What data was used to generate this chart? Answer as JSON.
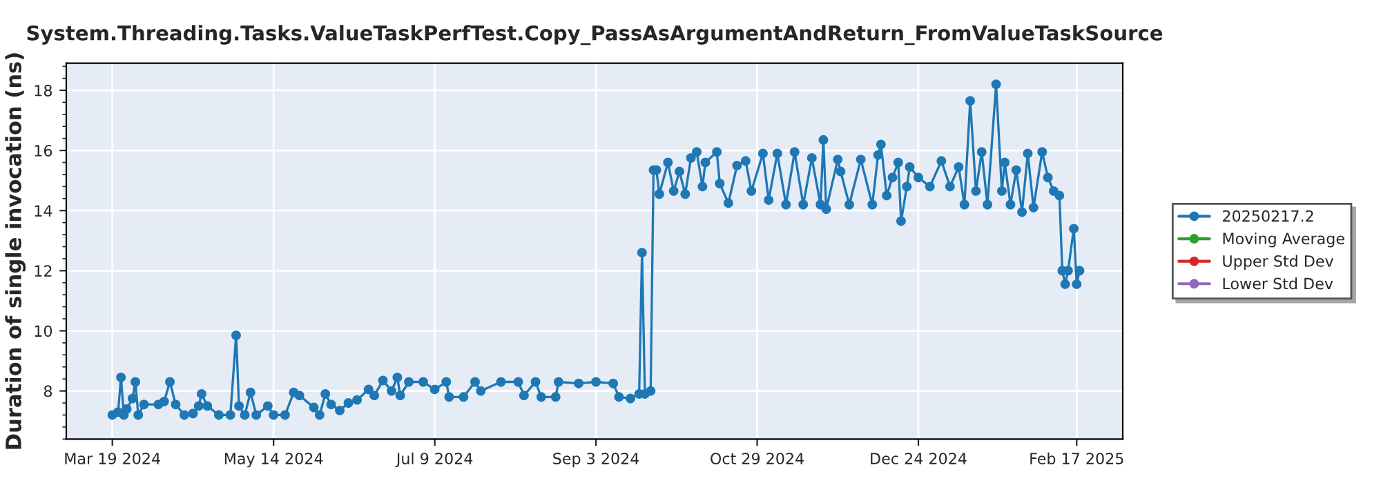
{
  "chart_data": {
    "type": "line",
    "title": "System.Threading.Tasks.ValueTaskPerfTest.Copy_PassAsArgumentAndReturn_FromValueTaskSource",
    "ylabel": "Duration of single invocation (ns)",
    "x": [
      "2024-03-19",
      "2024-03-21",
      "2024-03-22",
      "2024-03-23",
      "2024-03-24",
      "2024-03-26",
      "2024-03-27",
      "2024-03-28",
      "2024-03-30",
      "2024-04-04",
      "2024-04-06",
      "2024-04-08",
      "2024-04-10",
      "2024-04-13",
      "2024-04-16",
      "2024-04-18",
      "2024-04-19",
      "2024-04-21",
      "2024-04-25",
      "2024-04-29",
      "2024-05-01",
      "2024-05-02",
      "2024-05-04",
      "2024-05-06",
      "2024-05-08",
      "2024-05-12",
      "2024-05-14",
      "2024-05-18",
      "2024-05-21",
      "2024-05-23",
      "2024-05-28",
      "2024-05-30",
      "2024-06-01",
      "2024-06-03",
      "2024-06-06",
      "2024-06-09",
      "2024-06-12",
      "2024-06-16",
      "2024-06-18",
      "2024-06-21",
      "2024-06-24",
      "2024-06-26",
      "2024-06-27",
      "2024-06-30",
      "2024-07-05",
      "2024-07-09",
      "2024-07-13",
      "2024-07-14",
      "2024-07-19",
      "2024-07-23",
      "2024-07-25",
      "2024-08-01",
      "2024-08-07",
      "2024-08-09",
      "2024-08-13",
      "2024-08-15",
      "2024-08-20",
      "2024-08-21",
      "2024-08-28",
      "2024-09-03",
      "2024-09-09",
      "2024-09-11",
      "2024-09-15",
      "2024-09-18",
      "2024-09-19",
      "2024-09-20",
      "2024-09-22",
      "2024-09-23",
      "2024-09-24",
      "2024-09-25",
      "2024-09-28",
      "2024-09-30",
      "2024-10-02",
      "2024-10-04",
      "2024-10-06",
      "2024-10-08",
      "2024-10-10",
      "2024-10-11",
      "2024-10-15",
      "2024-10-16",
      "2024-10-19",
      "2024-10-22",
      "2024-10-25",
      "2024-10-27",
      "2024-10-31",
      "2024-11-02",
      "2024-11-05",
      "2024-11-08",
      "2024-11-11",
      "2024-11-14",
      "2024-11-17",
      "2024-11-20",
      "2024-11-21",
      "2024-11-22",
      "2024-11-26",
      "2024-11-27",
      "2024-11-30",
      "2024-12-04",
      "2024-12-08",
      "2024-12-10",
      "2024-12-11",
      "2024-12-13",
      "2024-12-15",
      "2024-12-17",
      "2024-12-18",
      "2024-12-20",
      "2024-12-21",
      "2024-12-24",
      "2024-12-28",
      "2025-01-01",
      "2025-01-04",
      "2025-01-07",
      "2025-01-09",
      "2025-01-11",
      "2025-01-13",
      "2025-01-15",
      "2025-01-17",
      "2025-01-20",
      "2025-01-22",
      "2025-01-23",
      "2025-01-25",
      "2025-01-27",
      "2025-01-29",
      "2025-01-31",
      "2025-02-02",
      "2025-02-05",
      "2025-02-07",
      "2025-02-09",
      "2025-02-11",
      "2025-02-12",
      "2025-02-13",
      "2025-02-14",
      "2025-02-16",
      "2025-02-17",
      "2025-02-18"
    ],
    "series": [
      {
        "name": "20250217.2",
        "color": "#1f77b4",
        "values": [
          7.2,
          7.3,
          8.45,
          7.2,
          7.4,
          7.75,
          8.3,
          7.2,
          7.55,
          7.55,
          7.65,
          8.3,
          7.55,
          7.2,
          7.25,
          7.5,
          7.9,
          7.5,
          7.2,
          7.2,
          9.85,
          7.5,
          7.2,
          7.95,
          7.2,
          7.5,
          7.2,
          7.2,
          7.95,
          7.85,
          7.45,
          7.2,
          7.9,
          7.55,
          7.35,
          7.6,
          7.7,
          8.05,
          7.85,
          8.35,
          8.0,
          8.45,
          7.85,
          8.3,
          8.3,
          8.05,
          8.3,
          7.8,
          7.8,
          8.3,
          8.0,
          8.3,
          8.3,
          7.85,
          8.3,
          7.8,
          7.8,
          8.3,
          8.25,
          8.3,
          8.25,
          7.8,
          7.75,
          7.9,
          12.6,
          7.9,
          8.0,
          15.35,
          15.35,
          14.55,
          15.6,
          14.65,
          15.3,
          14.55,
          15.75,
          15.95,
          14.8,
          15.6,
          15.95,
          14.9,
          14.25,
          15.5,
          15.65,
          14.65,
          15.9,
          14.35,
          15.9,
          14.2,
          15.95,
          14.2,
          15.75,
          14.2,
          16.35,
          14.05,
          15.7,
          15.3,
          14.2,
          15.7,
          14.2,
          15.85,
          16.2,
          14.5,
          15.1,
          15.6,
          13.65,
          14.8,
          15.45,
          15.1,
          14.8,
          15.65,
          14.8,
          15.45,
          14.2,
          17.65,
          14.65,
          15.95,
          14.2,
          18.2,
          14.65,
          15.6,
          14.2,
          15.35,
          13.95,
          15.9,
          14.1,
          15.95,
          15.1,
          14.65,
          14.5,
          12.0,
          11.55,
          12.0,
          13.4,
          11.55,
          12.0
        ]
      },
      {
        "name": "Moving Average",
        "color": "#2ca02c",
        "values": [
          null,
          null,
          null,
          null,
          null,
          null,
          null,
          null,
          null,
          null,
          null,
          null,
          null,
          null,
          null,
          null,
          null,
          null,
          null,
          null,
          null,
          null,
          null,
          null,
          null,
          null,
          null,
          null,
          null,
          null,
          null,
          null,
          null,
          null,
          null,
          null,
          null,
          null,
          null,
          null,
          null,
          null,
          null,
          null,
          null,
          null,
          null,
          null,
          null,
          null,
          null,
          null,
          null,
          null,
          null,
          null,
          null,
          null,
          null,
          null,
          null,
          null,
          null,
          null,
          null,
          null,
          null,
          null,
          null,
          null,
          null,
          null,
          null,
          null,
          null,
          null,
          null,
          null,
          null,
          null,
          null,
          null,
          null,
          null,
          null,
          null,
          null,
          null,
          null,
          null,
          null,
          null,
          null,
          null,
          null,
          null,
          null,
          null,
          null,
          null,
          null,
          null,
          null,
          null,
          null,
          null,
          null,
          null,
          null,
          null,
          null,
          null,
          null,
          null,
          null,
          null,
          null,
          null,
          null,
          null,
          null,
          null,
          null,
          null,
          null,
          null,
          null,
          null,
          null,
          null,
          null,
          null,
          null,
          null,
          null
        ]
      },
      {
        "name": "Upper Std Dev",
        "color": "#d62728",
        "values": [
          null,
          null,
          null,
          null,
          null,
          null,
          null,
          null,
          null,
          null,
          null,
          null,
          null,
          null,
          null,
          null,
          null,
          null,
          null,
          null,
          null,
          null,
          null,
          null,
          null,
          null,
          null,
          null,
          null,
          null,
          null,
          null,
          null,
          null,
          null,
          null,
          null,
          null,
          null,
          null,
          null,
          null,
          null,
          null,
          null,
          null,
          null,
          null,
          null,
          null,
          null,
          null,
          null,
          null,
          null,
          null,
          null,
          null,
          null,
          null,
          null,
          null,
          null,
          null,
          null,
          null,
          null,
          null,
          null,
          null,
          null,
          null,
          null,
          null,
          null,
          null,
          null,
          null,
          null,
          null,
          null,
          null,
          null,
          null,
          null,
          null,
          null,
          null,
          null,
          null,
          null,
          null,
          null,
          null,
          null,
          null,
          null,
          null,
          null,
          null,
          null,
          null,
          null,
          null,
          null,
          null,
          null,
          null,
          null,
          null,
          null,
          null,
          null,
          null,
          null,
          null,
          null,
          null,
          null,
          null,
          null,
          null,
          null,
          null,
          null,
          null,
          null,
          null,
          null,
          null,
          null,
          null,
          null,
          null,
          null
        ]
      },
      {
        "name": "Lower Std Dev",
        "color": "#9467bd",
        "values": [
          null,
          null,
          null,
          null,
          null,
          null,
          null,
          null,
          null,
          null,
          null,
          null,
          null,
          null,
          null,
          null,
          null,
          null,
          null,
          null,
          null,
          null,
          null,
          null,
          null,
          null,
          null,
          null,
          null,
          null,
          null,
          null,
          null,
          null,
          null,
          null,
          null,
          null,
          null,
          null,
          null,
          null,
          null,
          null,
          null,
          null,
          null,
          null,
          null,
          null,
          null,
          null,
          null,
          null,
          null,
          null,
          null,
          null,
          null,
          null,
          null,
          null,
          null,
          null,
          null,
          null,
          null,
          null,
          null,
          null,
          null,
          null,
          null,
          null,
          null,
          null,
          null,
          null,
          null,
          null,
          null,
          null,
          null,
          null,
          null,
          null,
          null,
          null,
          null,
          null,
          null,
          null,
          null,
          null,
          null,
          null,
          null,
          null,
          null,
          null,
          null,
          null,
          null,
          null,
          null,
          null,
          null,
          null,
          null,
          null,
          null,
          null,
          null,
          null,
          null,
          null,
          null,
          null,
          null,
          null,
          null,
          null,
          null,
          null,
          null,
          null,
          null,
          null,
          null,
          null,
          null,
          null,
          null,
          null,
          null
        ]
      }
    ],
    "xlim": [
      "2024-03-03",
      "2025-03-05"
    ],
    "xticks": [
      {
        "value": "2024-03-19",
        "label": "Mar 19 2024"
      },
      {
        "value": "2024-05-14",
        "label": "May 14 2024"
      },
      {
        "value": "2024-07-09",
        "label": "Jul 9 2024"
      },
      {
        "value": "2024-09-03",
        "label": "Sep 3 2024"
      },
      {
        "value": "2024-10-29",
        "label": "Oct 29 2024"
      },
      {
        "value": "2024-12-24",
        "label": "Dec 24 2024"
      },
      {
        "value": "2025-02-17",
        "label": "Feb 17 2025"
      }
    ],
    "ylim": [
      6.4,
      18.9
    ],
    "yticks": [
      8,
      10,
      12,
      14,
      16,
      18
    ],
    "grid": true,
    "legend": "right",
    "marker": "circle",
    "line_style": "solid"
  }
}
